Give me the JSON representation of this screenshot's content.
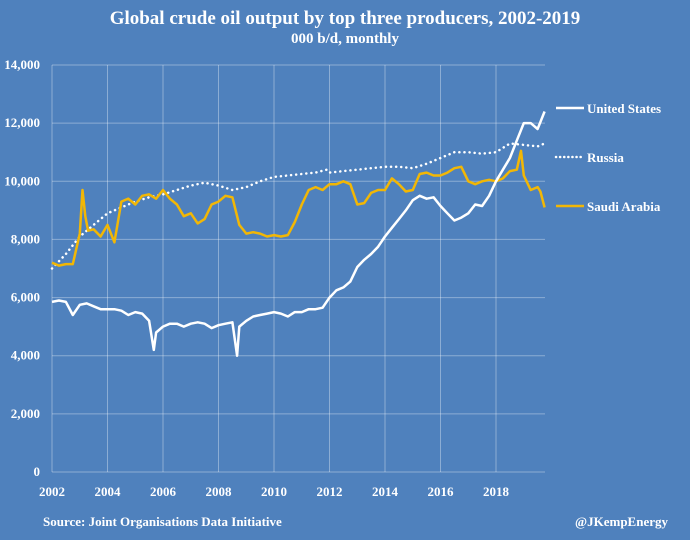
{
  "chart_data": {
    "type": "line",
    "title": "Global crude oil output by top three producers, 2002-2019",
    "subtitle": "000 b/d, monthly",
    "xlabel": "",
    "ylabel": "",
    "xlim": [
      2002,
      2019.9
    ],
    "ylim": [
      0,
      14000
    ],
    "x_ticks": [
      2002,
      2004,
      2006,
      2008,
      2010,
      2012,
      2014,
      2016,
      2018
    ],
    "x_tick_labels": [
      "2002",
      "2004",
      "2006",
      "2008",
      "2010",
      "2012",
      "2014",
      "2016",
      "2018"
    ],
    "y_ticks": [
      0,
      2000,
      4000,
      6000,
      8000,
      10000,
      12000,
      14000
    ],
    "y_tick_labels": [
      "0",
      "2,000",
      "4,000",
      "6,000",
      "8,000",
      "10,000",
      "12,000",
      "14,000"
    ],
    "grid": true,
    "legend_placement": "right",
    "series": [
      {
        "name": "United States",
        "color": "#ffffff",
        "style": "solid",
        "x": [
          2002.0,
          2002.25,
          2002.5,
          2002.75,
          2003.0,
          2003.25,
          2003.5,
          2003.75,
          2004.0,
          2004.25,
          2004.5,
          2004.75,
          2005.0,
          2005.25,
          2005.5,
          2005.67,
          2005.75,
          2006.0,
          2006.25,
          2006.5,
          2006.75,
          2007.0,
          2007.25,
          2007.5,
          2007.75,
          2008.0,
          2008.25,
          2008.5,
          2008.67,
          2008.75,
          2009.0,
          2009.25,
          2009.5,
          2009.75,
          2010.0,
          2010.25,
          2010.5,
          2010.75,
          2011.0,
          2011.25,
          2011.5,
          2011.75,
          2012.0,
          2012.25,
          2012.5,
          2012.75,
          2013.0,
          2013.25,
          2013.5,
          2013.75,
          2014.0,
          2014.25,
          2014.5,
          2014.75,
          2015.0,
          2015.25,
          2015.5,
          2015.75,
          2016.0,
          2016.25,
          2016.5,
          2016.75,
          2017.0,
          2017.25,
          2017.5,
          2017.75,
          2018.0,
          2018.25,
          2018.5,
          2018.75,
          2019.0,
          2019.25,
          2019.5,
          2019.75
        ],
        "values": [
          5850,
          5900,
          5850,
          5400,
          5750,
          5800,
          5700,
          5600,
          5600,
          5600,
          5550,
          5400,
          5500,
          5450,
          5200,
          4200,
          4800,
          5000,
          5100,
          5100,
          5000,
          5100,
          5150,
          5100,
          4950,
          5050,
          5100,
          5150,
          4000,
          5000,
          5200,
          5350,
          5400,
          5450,
          5500,
          5450,
          5350,
          5500,
          5500,
          5600,
          5600,
          5650,
          6000,
          6250,
          6350,
          6550,
          7050,
          7300,
          7500,
          7750,
          8100,
          8400,
          8700,
          9000,
          9350,
          9500,
          9400,
          9450,
          9150,
          8900,
          8650,
          8750,
          8900,
          9200,
          9150,
          9500,
          10000,
          10400,
          10800,
          11400,
          12000,
          12000,
          11800,
          12400
        ]
      },
      {
        "name": "Russia",
        "color": "#ffffff",
        "style": "dotted",
        "x": [
          2002.0,
          2002.5,
          2003.0,
          2003.5,
          2004.0,
          2004.5,
          2005.0,
          2005.5,
          2006.0,
          2006.5,
          2007.0,
          2007.5,
          2008.0,
          2008.5,
          2009.0,
          2009.5,
          2010.0,
          2010.5,
          2011.0,
          2011.5,
          2011.9,
          2012.0,
          2012.5,
          2013.0,
          2013.5,
          2014.0,
          2014.5,
          2015.0,
          2015.5,
          2016.0,
          2016.5,
          2017.0,
          2017.5,
          2018.0,
          2018.5,
          2019.0,
          2019.5,
          2019.75
        ],
        "values": [
          7000,
          7500,
          8100,
          8500,
          8900,
          9100,
          9300,
          9450,
          9550,
          9700,
          9850,
          9950,
          9850,
          9700,
          9800,
          10000,
          10150,
          10200,
          10250,
          10300,
          10400,
          10300,
          10350,
          10400,
          10450,
          10500,
          10500,
          10450,
          10600,
          10800,
          11000,
          11000,
          10950,
          11000,
          11300,
          11250,
          11200,
          11300
        ]
      },
      {
        "name": "Saudi Arabia",
        "color": "#f2b705",
        "style": "solid",
        "x": [
          2002.0,
          2002.25,
          2002.5,
          2002.75,
          2003.0,
          2003.1,
          2003.2,
          2003.3,
          2003.5,
          2003.75,
          2004.0,
          2004.25,
          2004.5,
          2004.75,
          2005.0,
          2005.25,
          2005.5,
          2005.75,
          2006.0,
          2006.25,
          2006.5,
          2006.75,
          2007.0,
          2007.25,
          2007.5,
          2007.75,
          2008.0,
          2008.25,
          2008.5,
          2008.75,
          2009.0,
          2009.25,
          2009.5,
          2009.75,
          2010.0,
          2010.25,
          2010.5,
          2010.75,
          2011.0,
          2011.25,
          2011.5,
          2011.75,
          2012.0,
          2012.25,
          2012.5,
          2012.75,
          2013.0,
          2013.25,
          2013.5,
          2013.75,
          2014.0,
          2014.25,
          2014.5,
          2014.75,
          2015.0,
          2015.25,
          2015.5,
          2015.75,
          2016.0,
          2016.25,
          2016.5,
          2016.75,
          2017.0,
          2017.25,
          2017.5,
          2017.75,
          2018.0,
          2018.25,
          2018.5,
          2018.75,
          2018.9,
          2019.0,
          2019.25,
          2019.5,
          2019.6,
          2019.75
        ],
        "values": [
          7200,
          7100,
          7150,
          7150,
          8200,
          9700,
          8800,
          8300,
          8350,
          8100,
          8500,
          7900,
          9300,
          9400,
          9200,
          9500,
          9550,
          9400,
          9700,
          9400,
          9200,
          8800,
          8900,
          8550,
          8700,
          9200,
          9300,
          9500,
          9450,
          8500,
          8200,
          8250,
          8200,
          8100,
          8150,
          8100,
          8150,
          8600,
          9200,
          9700,
          9800,
          9700,
          9900,
          9900,
          10000,
          9900,
          9200,
          9250,
          9600,
          9700,
          9700,
          10100,
          9900,
          9650,
          9700,
          10250,
          10300,
          10200,
          10200,
          10300,
          10450,
          10500,
          10000,
          9900,
          10000,
          10050,
          10000,
          10100,
          10350,
          10400,
          11050,
          10200,
          9700,
          9800,
          9650,
          9100
        ]
      }
    ]
  },
  "header": {
    "title": "Global crude oil output by top three producers, 2002-2019",
    "subtitle": "000 b/d, monthly"
  },
  "footer": {
    "source": "Source: Joint Organisations Data Initiative",
    "handle": "@JKempEnergy"
  },
  "legend": [
    {
      "label": "United States"
    },
    {
      "label": "Russia"
    },
    {
      "label": "Saudi Arabia"
    }
  ]
}
